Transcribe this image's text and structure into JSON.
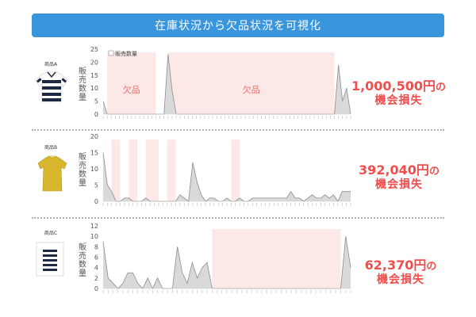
{
  "banner": {
    "title": "在庫状況から欠品状況を可視化"
  },
  "products": [
    {
      "label": "商品A",
      "icon": "striped-polo-shirt-icon"
    },
    {
      "label": "商品B",
      "icon": "yellow-blouse-icon"
    },
    {
      "label": "商品C",
      "icon": "striped-shirt-icon"
    }
  ],
  "losses": [
    {
      "amount": "1,000,500円",
      "suffix": "の",
      "line2": "機会損失"
    },
    {
      "amount": "392,040円",
      "suffix": "の",
      "line2": "機会損失"
    },
    {
      "amount": "62,370円",
      "suffix": "の",
      "line2": "機会損失"
    }
  ],
  "colors": {
    "banner": "#3a96dc",
    "loss_text": "#f24d4d",
    "stockout_fill": "#fde8e8",
    "area_fill": "#d9d9d9",
    "area_line": "#8c8c8c"
  },
  "chart_data": [
    {
      "type": "area",
      "ylabel": "販売数量",
      "ylim": [
        0,
        25
      ],
      "yticks": [
        0,
        5,
        10,
        15,
        20,
        25
      ],
      "legend": "販売数量",
      "legend_position": "top-left",
      "stockout_label": "欠品",
      "stockout_ranges": [
        [
          1,
          13
        ],
        [
          16,
          57
        ]
      ],
      "values": [
        5,
        0,
        0,
        0,
        0,
        0,
        0,
        0,
        0,
        0,
        0,
        0,
        0,
        0,
        0,
        0,
        23,
        9,
        0,
        0,
        0,
        0,
        0,
        0,
        0,
        0,
        0,
        0,
        0,
        0,
        0,
        0,
        0,
        0,
        0,
        0,
        0,
        0,
        0,
        0,
        0,
        0,
        0,
        0,
        0,
        0,
        0,
        0,
        0,
        0,
        0,
        0,
        0,
        0,
        0,
        0,
        0,
        0,
        19,
        5,
        10,
        0
      ]
    },
    {
      "type": "area",
      "ylabel": "販売数量",
      "ylim": [
        0,
        20
      ],
      "yticks": [
        0,
        5,
        10,
        15,
        20
      ],
      "stockout_ranges": [
        [
          2,
          4
        ],
        [
          6,
          8
        ],
        [
          10,
          13
        ],
        [
          15,
          17
        ],
        [
          30,
          32
        ]
      ],
      "values": [
        15,
        5,
        3,
        0,
        0,
        1,
        1,
        0,
        0,
        0,
        1,
        0,
        0,
        0,
        0,
        0,
        0,
        0,
        2,
        1,
        0,
        12,
        6,
        2,
        0,
        1,
        1,
        0,
        0,
        1,
        0,
        0,
        1,
        0,
        0,
        1,
        1,
        1,
        1,
        1,
        1,
        1,
        1,
        1,
        3,
        1,
        1,
        0,
        1,
        2,
        1,
        1,
        2,
        1,
        2,
        0,
        3,
        3,
        3
      ]
    },
    {
      "type": "area",
      "ylabel": "販売数量",
      "ylim": [
        0,
        12
      ],
      "yticks": [
        0,
        2,
        4,
        6,
        8,
        10,
        12
      ],
      "stockout_ranges": [
        [
          22,
          48
        ]
      ],
      "values": [
        9,
        2,
        1,
        0,
        1,
        3,
        3,
        1,
        0,
        2,
        0,
        2,
        0,
        0,
        0,
        8,
        3,
        1,
        5,
        2,
        4,
        5,
        0,
        0,
        0,
        0,
        0,
        0,
        0,
        0,
        0,
        0,
        0,
        0,
        0,
        0,
        0,
        0,
        0,
        0,
        0,
        0,
        0,
        0,
        0,
        0,
        0,
        0,
        0,
        10,
        4
      ]
    }
  ]
}
